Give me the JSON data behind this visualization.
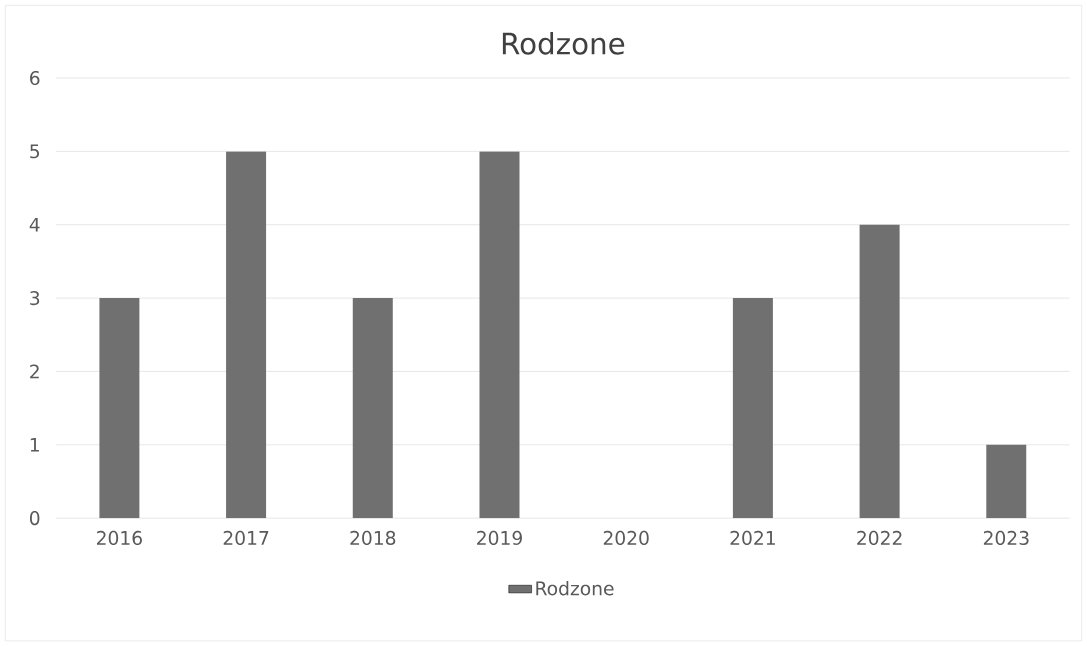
{
  "chart_data": {
    "type": "bar",
    "title": "Rodzone",
    "categories": [
      "2016",
      "2017",
      "2018",
      "2019",
      "2020",
      "2021",
      "2022",
      "2023"
    ],
    "series": [
      {
        "name": "Rodzone",
        "color": "#707070",
        "values": [
          3,
          5,
          3,
          5,
          0,
          3,
          4,
          1
        ]
      }
    ],
    "ylim": [
      0,
      6
    ],
    "yticks": [
      0,
      1,
      2,
      3,
      4,
      5,
      6
    ],
    "grid": "y",
    "legend": "bottom"
  }
}
